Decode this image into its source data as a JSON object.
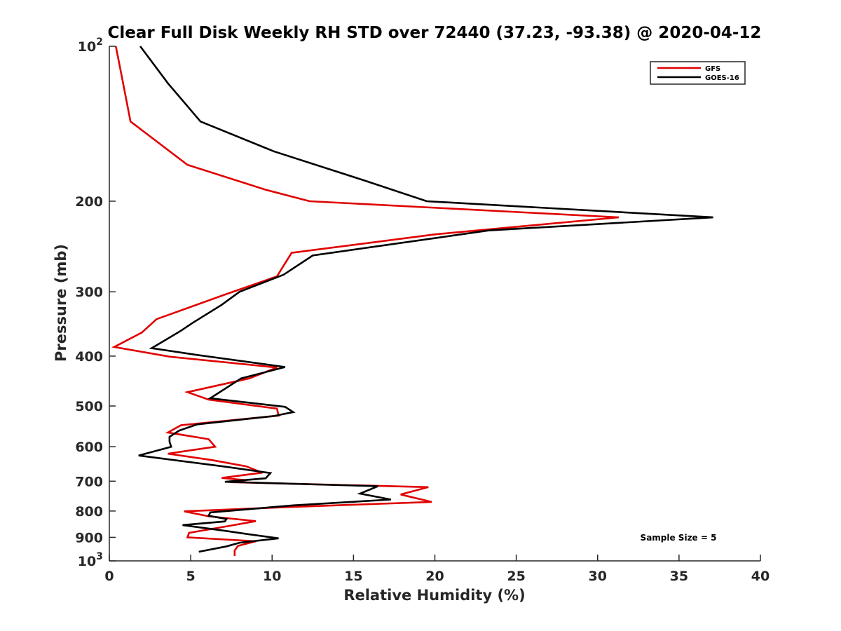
{
  "chart_data": {
    "type": "line",
    "title": "Clear Full Disk Weekly RH STD over 72440 (37.23, -93.38) @ 2020-04-12",
    "xlabel": "Relative Humidity (%)",
    "ylabel": "Pressure (mb)",
    "xlim": [
      0,
      40
    ],
    "ylim": [
      100,
      1000
    ],
    "y_scale": "log",
    "y_reversed": true,
    "grid": false,
    "legend_position": "top-right",
    "x_ticks": [
      0,
      5,
      10,
      15,
      20,
      25,
      30,
      35,
      40
    ],
    "x_tick_labels": [
      "0",
      "5",
      "10",
      "15",
      "20",
      "25",
      "30",
      "35",
      "40"
    ],
    "y_ticks": [
      {
        "value": 100,
        "base": "10",
        "exp": "2"
      },
      {
        "value": 200,
        "label": "200"
      },
      {
        "value": 300,
        "label": "300"
      },
      {
        "value": 400,
        "label": "400"
      },
      {
        "value": 500,
        "label": "500"
      },
      {
        "value": 600,
        "label": "600"
      },
      {
        "value": 700,
        "label": "700"
      },
      {
        "value": 800,
        "label": "800"
      },
      {
        "value": 900,
        "label": "900"
      },
      {
        "value": 1000,
        "base": "10",
        "exp": "3"
      }
    ],
    "annotation": "Sample Size = 5",
    "series": [
      {
        "name": "GFS",
        "color": "#e00000",
        "points": [
          [
            0.4,
            100
          ],
          [
            0.8,
            116
          ],
          [
            1.3,
            140
          ],
          [
            4.8,
            170
          ],
          [
            9.6,
            190
          ],
          [
            12.3,
            200
          ],
          [
            31.3,
            215
          ],
          [
            20.0,
            232
          ],
          [
            11.2,
            252
          ],
          [
            10.3,
            280
          ],
          [
            7.2,
            303
          ],
          [
            2.9,
            339
          ],
          [
            2.0,
            360
          ],
          [
            0.3,
            384
          ],
          [
            3.7,
            401
          ],
          [
            10.3,
            421
          ],
          [
            8.6,
            442
          ],
          [
            4.8,
            470
          ],
          [
            6.1,
            486
          ],
          [
            10.3,
            506
          ],
          [
            10.4,
            522
          ],
          [
            4.4,
            545
          ],
          [
            3.6,
            563
          ],
          [
            6.1,
            580
          ],
          [
            6.5,
            600
          ],
          [
            3.6,
            619
          ],
          [
            6.3,
            637
          ],
          [
            8.4,
            655
          ],
          [
            9.4,
            674
          ],
          [
            6.9,
            690
          ],
          [
            8.4,
            697
          ],
          [
            7.4,
            703
          ],
          [
            19.6,
            719
          ],
          [
            17.9,
            743
          ],
          [
            19.8,
            768
          ],
          [
            11.5,
            785
          ],
          [
            4.6,
            801
          ],
          [
            6.1,
            819
          ],
          [
            9.0,
            837
          ],
          [
            7.3,
            856
          ],
          [
            4.9,
            882
          ],
          [
            4.8,
            900
          ],
          [
            9.0,
            916
          ],
          [
            7.9,
            935
          ],
          [
            7.7,
            955
          ],
          [
            7.7,
            978
          ]
        ]
      },
      {
        "name": "GOES-16",
        "color": "#000000",
        "points": [
          [
            1.9,
            100
          ],
          [
            3.6,
            118
          ],
          [
            5.6,
            140
          ],
          [
            10.1,
            160
          ],
          [
            15.6,
            182
          ],
          [
            19.5,
            200
          ],
          [
            37.1,
            215
          ],
          [
            23.3,
            228
          ],
          [
            12.5,
            255
          ],
          [
            10.7,
            278
          ],
          [
            8.0,
            300
          ],
          [
            6.9,
            318
          ],
          [
            5.1,
            345
          ],
          [
            4.4,
            357
          ],
          [
            2.6,
            386
          ],
          [
            5.4,
            398
          ],
          [
            10.8,
            420
          ],
          [
            8.1,
            442
          ],
          [
            6.2,
            483
          ],
          [
            10.8,
            502
          ],
          [
            11.3,
            514
          ],
          [
            10.1,
            523
          ],
          [
            5.4,
            543
          ],
          [
            4.3,
            558
          ],
          [
            3.7,
            574
          ],
          [
            3.7,
            587
          ],
          [
            3.8,
            600
          ],
          [
            1.8,
            624
          ],
          [
            7.1,
            656
          ],
          [
            9.9,
            675
          ],
          [
            9.6,
            691
          ],
          [
            7.1,
            702
          ],
          [
            16.5,
            716
          ],
          [
            15.4,
            740
          ],
          [
            17.3,
            760
          ],
          [
            11.3,
            780
          ],
          [
            6.2,
            805
          ],
          [
            6.1,
            817
          ],
          [
            7.2,
            829
          ],
          [
            7.1,
            838
          ],
          [
            4.5,
            852
          ],
          [
            7.1,
            874
          ],
          [
            8.5,
            887
          ],
          [
            10.4,
            904
          ],
          [
            8.0,
            922
          ],
          [
            7.2,
            937
          ],
          [
            5.5,
            960
          ]
        ]
      }
    ]
  }
}
